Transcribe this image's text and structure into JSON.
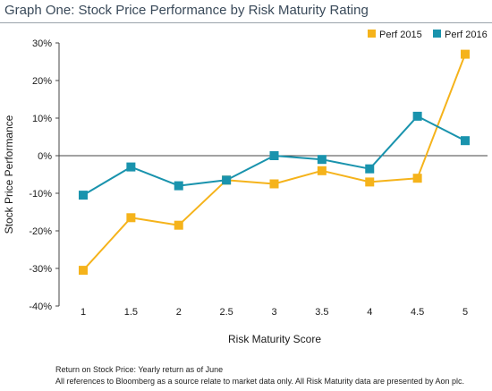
{
  "header": {
    "title": "Graph One: Stock Price Performance by Risk Maturity Rating"
  },
  "chart_data": {
    "type": "line",
    "title": "Graph One: Stock Price Performance by Risk Maturity Rating",
    "xlabel": "Risk Maturity Score",
    "ylabel": "Stock Price Performance",
    "x": [
      1,
      1.5,
      2,
      2.5,
      3,
      3.5,
      4,
      4.5,
      5
    ],
    "x_tick_labels": [
      "1",
      "1.5",
      "2",
      "2.5",
      "3",
      "3.5",
      "4",
      "4.5",
      "5"
    ],
    "y_ticks": [
      30,
      20,
      10,
      0,
      -10,
      -20,
      -30,
      -40
    ],
    "y_tick_labels": [
      "30%",
      "20%",
      "10%",
      "0%",
      "-10%",
      "-20%",
      "-30%",
      "-40%"
    ],
    "xlim": [
      1,
      5
    ],
    "ylim": [
      -40,
      30
    ],
    "grid": false,
    "legend_position": "top-right",
    "series": [
      {
        "name": "Perf 2015",
        "color": "#f5b31b",
        "values": [
          -30.5,
          -16.5,
          -18.5,
          -6.5,
          -7.5,
          -4,
          -7,
          -6,
          27
        ]
      },
      {
        "name": "Perf 2016",
        "color": "#1993ad",
        "values": [
          -10.5,
          -3,
          -8,
          -6.5,
          0,
          -1,
          -3.5,
          10.5,
          4
        ]
      }
    ]
  },
  "footnotes": {
    "line1": "Return on Stock Price: Yearly return as of June",
    "line2": "All references to Bloomberg as a source relate to market data only. All Risk Maturity data are presented by Aon plc."
  }
}
